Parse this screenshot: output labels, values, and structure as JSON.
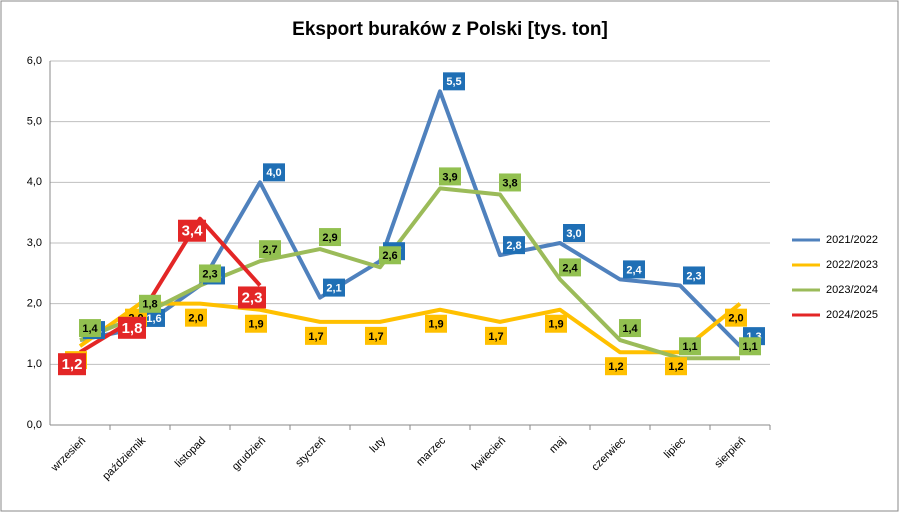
{
  "chart_data": {
    "type": "line",
    "title": "Eksport buraków z Polski [tys. ton]",
    "categories": [
      "wrzesień",
      "październik",
      "listopad",
      "grudzień",
      "styczeń",
      "luty",
      "marzec",
      "kwiecień",
      "maj",
      "czerwiec",
      "lipiec",
      "sierpień"
    ],
    "ylim": [
      0,
      6
    ],
    "yticks": [
      {
        "value": 0,
        "label": "0,0"
      },
      {
        "value": 1,
        "label": "1,0"
      },
      {
        "value": 2,
        "label": "2,0"
      },
      {
        "value": 3,
        "label": "3,0"
      },
      {
        "value": 4,
        "label": "4,0"
      },
      {
        "value": 5,
        "label": "5,0"
      },
      {
        "value": 6,
        "label": "6,0"
      }
    ],
    "grid": true,
    "legend": "right",
    "series": [
      {
        "name": "2021/2022",
        "color": "#4f81bd",
        "label_color": "#1f6fb5",
        "label_text_color": "#ffffff",
        "values": [
          1.4,
          1.6,
          2.3,
          4.0,
          2.1,
          2.7,
          5.5,
          2.8,
          3.0,
          2.4,
          2.3,
          1.3
        ],
        "value_labels": [
          "1,4",
          "1,6",
          "2,3",
          "4,0",
          "2,1",
          "2,7",
          "5,5",
          "2,8",
          "3,0",
          "2,4",
          "2,3",
          "1,3"
        ]
      },
      {
        "name": "2022/2023",
        "color": "#ffc000",
        "label_color": "#ffc000",
        "label_text_color": "#000000",
        "values": [
          1.3,
          2.0,
          2.0,
          1.9,
          1.7,
          1.7,
          1.9,
          1.7,
          1.9,
          1.2,
          1.2,
          2.0
        ],
        "value_labels": [
          "1,3",
          "2,0",
          "2,0",
          "1,9",
          "1,7",
          "1,7",
          "1,9",
          "1,7",
          "1,9",
          "1,2",
          "1,2",
          "2,0"
        ]
      },
      {
        "name": "2023/2024",
        "color": "#9bbb59",
        "label_color": "#92c050",
        "label_text_color": "#000000",
        "values": [
          1.4,
          1.8,
          2.3,
          2.7,
          2.9,
          2.6,
          3.9,
          3.8,
          2.4,
          1.4,
          1.1,
          1.1
        ],
        "value_labels": [
          "1,4",
          "1,8",
          "2,3",
          "2,7",
          "2,9",
          "2,6",
          "3,9",
          "3,8",
          "2,4",
          "1,4",
          "1,1",
          "1,1"
        ]
      },
      {
        "name": "2024/2025",
        "color": "#e32626",
        "label_color": "#e32626",
        "label_text_color": "#ffffff",
        "values": [
          1.2,
          1.8,
          3.4,
          2.3,
          null,
          null,
          null,
          null,
          null,
          null,
          null,
          null
        ],
        "value_labels": [
          "1,2",
          "1,8",
          "3,4",
          "2,3",
          null,
          null,
          null,
          null,
          null,
          null,
          null,
          null
        ]
      }
    ]
  }
}
